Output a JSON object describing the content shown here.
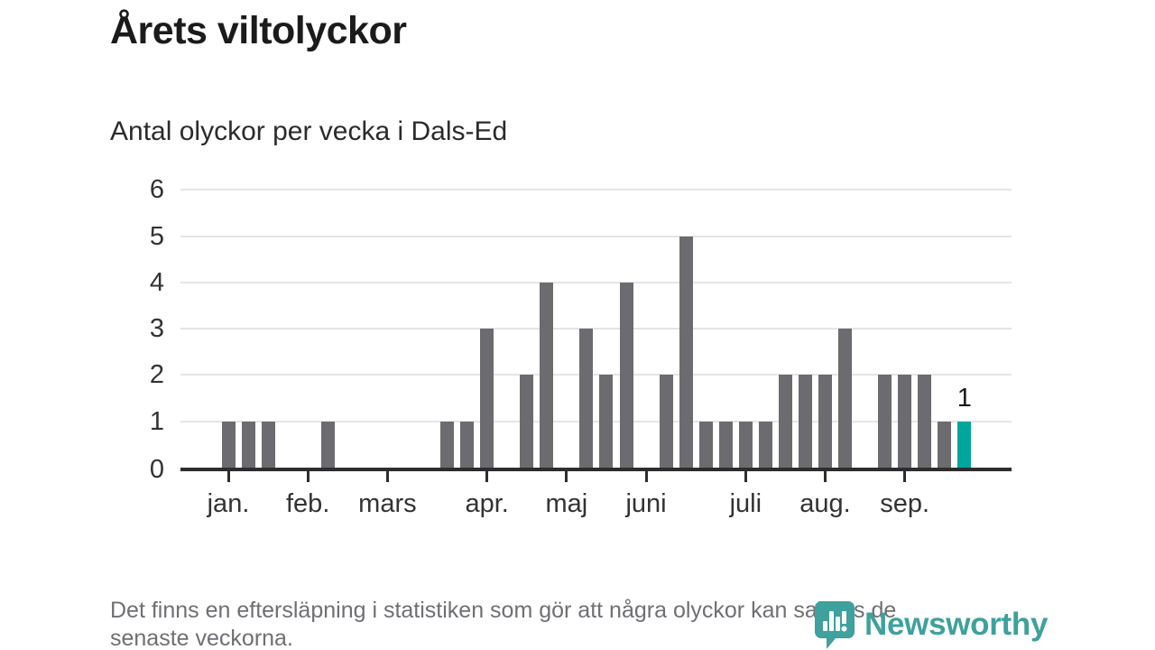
{
  "page": {
    "title": "Årets viltolyckor",
    "subtitle": "Antal olyckor per vecka i Dals-Ed",
    "footer_lines": [
      "Det finns en eftersläpning i statistiken som gör att några olyckor kan saknas de",
      "senaste veckorna."
    ],
    "logo_text": "Newsworthy"
  },
  "colors": {
    "bar": "#6b6b70",
    "bar_highlight": "#00a69c",
    "gridline": "#e4e4e4",
    "axis": "#2d2d2d",
    "title_text": "#1b1b1b",
    "subtitle_text": "#2b2b2b",
    "tick_text": "#333333",
    "footer_text": "#6f6f74",
    "annotation_text": "#1a1a1a",
    "logo_teal": "#3ea19d"
  },
  "chart_data": {
    "type": "bar",
    "title": "Årets viltolyckor",
    "subtitle": "Antal olyckor per vecka i Dals-Ed",
    "xlabel": "",
    "ylabel": "",
    "ylim": [
      0,
      6
    ],
    "grid": true,
    "y_ticks": [
      0,
      1,
      2,
      3,
      4,
      5,
      6
    ],
    "x_unit": "vecka",
    "values": [
      1,
      1,
      1,
      0,
      0,
      1,
      0,
      0,
      0,
      0,
      0,
      1,
      1,
      3,
      0,
      2,
      4,
      0,
      3,
      2,
      4,
      0,
      2,
      5,
      1,
      1,
      1,
      1,
      2,
      2,
      2,
      3,
      0,
      2,
      2,
      2,
      1,
      1
    ],
    "highlight_index": 37,
    "annotation": {
      "index": 37,
      "text": "1"
    },
    "months": [
      {
        "label": "jan.",
        "week_index": 0
      },
      {
        "label": "feb.",
        "week_index": 4
      },
      {
        "label": "mars",
        "week_index": 8
      },
      {
        "label": "apr.",
        "week_index": 13
      },
      {
        "label": "maj",
        "week_index": 17
      },
      {
        "label": "juni",
        "week_index": 21
      },
      {
        "label": "juli",
        "week_index": 26
      },
      {
        "label": "aug.",
        "week_index": 30
      },
      {
        "label": "sep.",
        "week_index": 34
      }
    ]
  }
}
